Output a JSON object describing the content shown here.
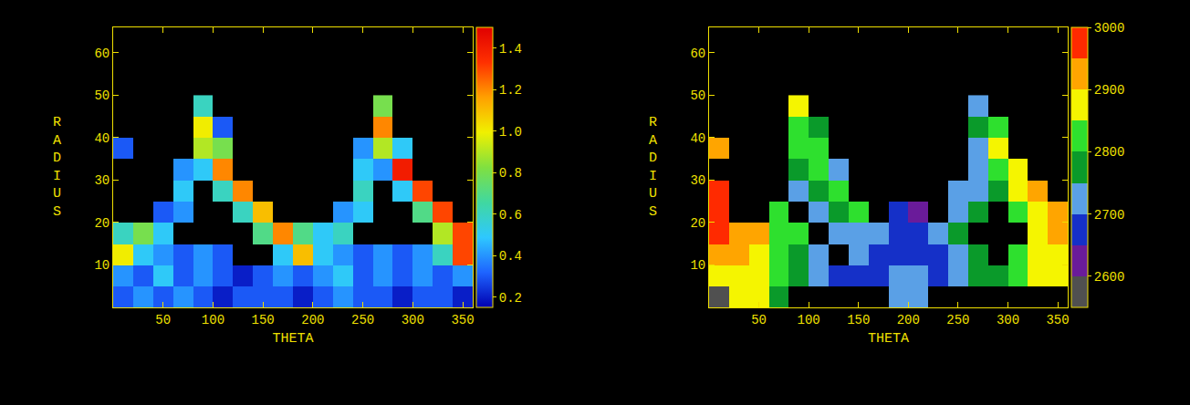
{
  "chart_data": [
    {
      "type": "heatmap",
      "xlabel": "THETA",
      "ylabel": "RADIUS",
      "x": [
        10,
        30,
        50,
        70,
        90,
        110,
        130,
        150,
        170,
        190,
        210,
        230,
        250,
        270,
        290,
        310,
        330,
        350
      ],
      "y": [
        2.5,
        7.5,
        12.5,
        17.5,
        22.5,
        27.5,
        32.5,
        37.5,
        42.5,
        47.5
      ],
      "z": [
        [
          0.3,
          0.4,
          0.3,
          0.4,
          0.3,
          0.2,
          0.3,
          0.3,
          0.3,
          0.2,
          0.3,
          0.4,
          0.3,
          0.3,
          0.2,
          0.3,
          0.3,
          0.2
        ],
        [
          0.4,
          0.3,
          0.5,
          0.3,
          0.4,
          0.3,
          0.2,
          0.3,
          0.4,
          0.3,
          0.4,
          0.5,
          0.3,
          0.4,
          0.3,
          0.4,
          0.3,
          0.4
        ],
        [
          1.0,
          0.5,
          0.4,
          0.3,
          0.4,
          0.3,
          null,
          null,
          0.5,
          1.1,
          0.5,
          0.4,
          0.3,
          0.4,
          0.3,
          0.4,
          0.6,
          1.3
        ],
        [
          0.6,
          0.8,
          0.5,
          null,
          null,
          null,
          null,
          0.7,
          1.2,
          0.7,
          0.5,
          0.6,
          null,
          null,
          null,
          null,
          0.9,
          1.3
        ],
        [
          null,
          null,
          0.3,
          0.4,
          null,
          null,
          0.6,
          1.1,
          null,
          null,
          null,
          0.4,
          0.5,
          null,
          null,
          0.7,
          1.3,
          null
        ],
        [
          null,
          null,
          null,
          0.5,
          null,
          0.6,
          1.2,
          null,
          null,
          null,
          null,
          null,
          0.6,
          null,
          0.5,
          1.3,
          null,
          null
        ],
        [
          null,
          null,
          null,
          0.4,
          0.5,
          1.2,
          null,
          null,
          null,
          null,
          null,
          null,
          0.5,
          0.4,
          1.4,
          null,
          null,
          null
        ],
        [
          0.3,
          null,
          null,
          null,
          0.9,
          0.8,
          null,
          null,
          null,
          null,
          null,
          null,
          0.4,
          0.9,
          0.5,
          null,
          null,
          null
        ],
        [
          null,
          null,
          null,
          null,
          1.0,
          0.3,
          null,
          null,
          null,
          null,
          null,
          null,
          null,
          1.2,
          null,
          null,
          null,
          null
        ],
        [
          null,
          null,
          null,
          null,
          0.6,
          null,
          null,
          null,
          null,
          null,
          null,
          null,
          null,
          0.8,
          null,
          null,
          null,
          null
        ]
      ],
      "xlim": [
        0,
        360
      ],
      "xticks": [
        50,
        100,
        150,
        200,
        250,
        300,
        350
      ],
      "ylim": [
        0,
        66
      ],
      "yticks": [
        10,
        20,
        30,
        40,
        50,
        60
      ],
      "zlim": [
        0.15,
        1.5
      ],
      "zticks": [
        0.2,
        0.4,
        0.6,
        0.8,
        {
          "value": 1,
          "label": "1.0"
        },
        1.2,
        1.4
      ],
      "colors": [
        "#0000b0",
        "#1e64ff",
        "#2ec8ff",
        "#40d8a0",
        "#80e040",
        "#f0f000",
        "#ffa000",
        "#ff3000",
        "#e00000"
      ],
      "grid": false
    },
    {
      "type": "heatmap",
      "xlabel": "THETA",
      "ylabel": "RADIUS",
      "x": [
        10,
        30,
        50,
        70,
        90,
        110,
        130,
        150,
        170,
        190,
        210,
        230,
        250,
        270,
        290,
        310,
        330,
        350
      ],
      "y": [
        2.5,
        7.5,
        12.5,
        17.5,
        22.5,
        27.5,
        32.5,
        37.5,
        42.5,
        47.5
      ],
      "z": [
        [
          2570,
          2870,
          2870,
          2770,
          null,
          null,
          null,
          null,
          null,
          2720,
          2720,
          null,
          null,
          null,
          null,
          null,
          null,
          null
        ],
        [
          2870,
          2870,
          2870,
          2820,
          2770,
          2720,
          2670,
          2670,
          2670,
          2720,
          2720,
          2670,
          2720,
          2770,
          2770,
          2820,
          2870,
          2870
        ],
        [
          2920,
          2920,
          2870,
          2820,
          2770,
          2720,
          null,
          2720,
          2670,
          2670,
          2670,
          2670,
          2720,
          2770,
          null,
          2820,
          2870,
          2870
        ],
        [
          2970,
          2920,
          2920,
          2820,
          2820,
          null,
          2720,
          2720,
          2720,
          2670,
          2670,
          2720,
          2770,
          null,
          null,
          null,
          2870,
          2920
        ],
        [
          2970,
          null,
          null,
          2820,
          null,
          2720,
          2770,
          2820,
          null,
          2670,
          2620,
          null,
          2720,
          2770,
          null,
          2820,
          2870,
          2920
        ],
        [
          2970,
          null,
          null,
          null,
          2720,
          2770,
          2820,
          null,
          null,
          null,
          null,
          null,
          2720,
          2720,
          2770,
          2870,
          2920,
          null
        ],
        [
          null,
          null,
          null,
          null,
          2770,
          2820,
          2720,
          null,
          null,
          null,
          null,
          null,
          null,
          2720,
          2820,
          2870,
          null,
          null
        ],
        [
          2920,
          null,
          null,
          null,
          2820,
          2820,
          null,
          null,
          null,
          null,
          null,
          null,
          null,
          2720,
          2850,
          null,
          null,
          null
        ],
        [
          null,
          null,
          null,
          null,
          2840,
          2770,
          null,
          null,
          null,
          null,
          null,
          null,
          null,
          2770,
          2820,
          null,
          null,
          null
        ],
        [
          null,
          null,
          null,
          null,
          2870,
          null,
          null,
          null,
          null,
          null,
          null,
          null,
          null,
          2720,
          null,
          null,
          null,
          null
        ]
      ],
      "xlim": [
        0,
        360
      ],
      "xticks": [
        50,
        100,
        150,
        200,
        250,
        300,
        350
      ],
      "ylim": [
        0,
        66
      ],
      "yticks": [
        10,
        20,
        30,
        40,
        50,
        60
      ],
      "zlim": [
        2550,
        3000
      ],
      "zticks": [
        2600,
        2700,
        2800,
        2900,
        3000
      ],
      "colors": [
        "#505050",
        "#6a1b9a",
        "#1530c8",
        "#5aa0e6",
        "#0a9a2a",
        "#2ee02e",
        "#f5f500",
        "#ffa500",
        "#ff2a00"
      ],
      "grid": false
    }
  ]
}
